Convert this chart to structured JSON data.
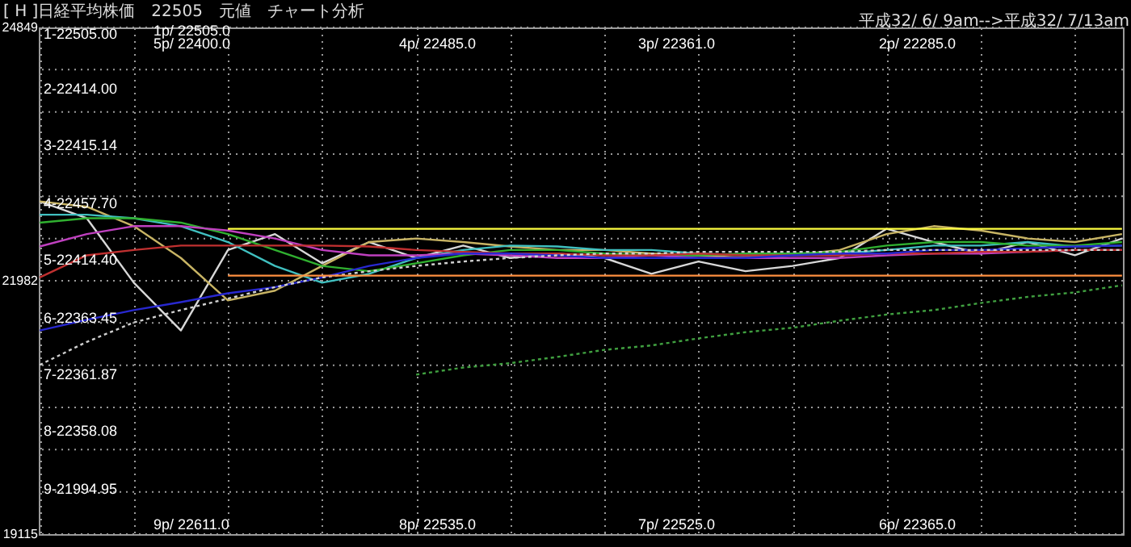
{
  "chart_data": {
    "type": "line",
    "title": "[ H ]日経平均株価　22505　元値　チャート分析",
    "subtitle": "平成32/ 6/ 9am-->平成32/ 7/13am",
    "annotations": [
      "1-22505.00",
      "2-22414.00",
      "3-22415.14",
      "4-22457.70",
      "5-22414.40",
      "6-22363.45",
      "7-22361.87",
      "8-22358.08",
      "9-21994.95",
      "1p/ 22505.0",
      "5p/ 22400.0",
      "4p/ 22485.0",
      "3p/ 22361.0",
      "2p/ 22285.0",
      "9p/ 22611.0",
      "8p/ 22535.0",
      "7p/ 22525.0",
      "6p/ 22365.0"
    ],
    "categories": [
      null,
      null,
      null,
      null,
      null,
      null,
      null,
      null,
      null,
      null,
      null,
      null,
      null,
      null,
      null,
      null,
      null,
      null,
      null,
      null,
      null,
      null,
      null,
      null
    ],
    "ylim": [
      19115,
      24849
    ],
    "yticks": [
      24849,
      {
        "value": 24371,
        "label": null
      },
      {
        "value": 23893,
        "label": null
      },
      {
        "value": 23416,
        "label": null
      },
      {
        "value": 22938,
        "label": null
      },
      {
        "value": 22460,
        "label": null
      },
      21982,
      {
        "value": 21504,
        "label": null
      },
      {
        "value": 21026,
        "label": null
      },
      {
        "value": 20549,
        "label": null
      },
      {
        "value": 20071,
        "label": null
      },
      {
        "value": 19593,
        "label": null
      },
      19115
    ],
    "grid": true,
    "tick_labels": "y",
    "series": [
      {
        "color": "#d8d8d8",
        "values": [
          22880,
          22690,
          21960,
          21420,
          22330,
          22510,
          22180,
          22420,
          22240,
          22380,
          22240,
          22290,
          22240,
          22060,
          22200,
          22090,
          22150,
          22240,
          22570,
          22420,
          22290,
          22420,
          22270,
          22460
        ]
      },
      {
        "color": "#c8b464",
        "values": [
          22880,
          22820,
          22600,
          22240,
          21760,
          21870,
          22150,
          22420,
          22460,
          22420,
          22370,
          22330,
          22330,
          22290,
          22270,
          22240,
          22270,
          22330,
          22510,
          22600,
          22550,
          22460,
          22420,
          22510
        ]
      },
      {
        "color": "#40c0c0",
        "values": [
          22730,
          22730,
          22690,
          22600,
          22420,
          22150,
          21960,
          22060,
          22240,
          22330,
          22380,
          22370,
          22330,
          22330,
          22290,
          22270,
          22270,
          22290,
          22330,
          22380,
          22380,
          22420,
          22370,
          22380
        ]
      },
      {
        "color": "#30b030",
        "values": [
          22640,
          22690,
          22690,
          22640,
          22510,
          22330,
          22150,
          22090,
          22180,
          22270,
          22330,
          22330,
          22290,
          22270,
          22270,
          22290,
          22290,
          22310,
          22380,
          22420,
          22420,
          22380,
          22380,
          22420
        ]
      },
      {
        "color": "#c040c0",
        "values": [
          22370,
          22510,
          22600,
          22600,
          22550,
          22460,
          22330,
          22270,
          22270,
          22290,
          22270,
          22240,
          22240,
          22270,
          22240,
          22240,
          22240,
          22240,
          22270,
          22290,
          22290,
          22310,
          22330,
          22330
        ]
      },
      {
        "color": "#c03030",
        "values": [
          22020,
          22270,
          22330,
          22380,
          22380,
          22380,
          22380,
          22370,
          22330,
          22310,
          22290,
          22290,
          22270,
          22270,
          22290,
          22270,
          22270,
          22270,
          22290,
          22290,
          22310,
          22310,
          22330,
          22330
        ]
      },
      {
        "color": "#2828d0",
        "values": [
          21420,
          21540,
          21650,
          21740,
          21840,
          21910,
          22020,
          22150,
          22240,
          22290,
          22290,
          22270,
          22240,
          22240,
          22240,
          22240,
          22270,
          22290,
          22290,
          22330,
          22330,
          22350,
          22370,
          22380
        ]
      },
      {
        "color": "#d0d0d0",
        "line_style": "dotted",
        "values": [
          21030,
          21290,
          21510,
          21650,
          21780,
          21910,
          22020,
          22090,
          22150,
          22200,
          22240,
          22270,
          22290,
          22290,
          22310,
          22310,
          22310,
          22310,
          22330,
          22330,
          22330,
          22330,
          22330,
          22330
        ]
      },
      {
        "color": "#40a040",
        "line_style": "dotted",
        "values": [
          null,
          null,
          null,
          null,
          null,
          null,
          null,
          null,
          20920,
          21000,
          21050,
          21120,
          21200,
          21250,
          21330,
          21400,
          21450,
          21530,
          21600,
          21650,
          21730,
          21800,
          21850,
          21930
        ]
      },
      {
        "color": "#ffff40",
        "values": [
          null,
          null,
          null,
          null,
          22570,
          22570,
          22570,
          22570,
          22570,
          22570,
          22570,
          22570,
          22570,
          22570,
          22570,
          22570,
          22570,
          22570,
          22570,
          22570,
          22570,
          22570,
          22570,
          22570
        ]
      },
      {
        "color": "#ff9040",
        "values": [
          null,
          null,
          null,
          null,
          22040,
          22040,
          22040,
          22040,
          22040,
          22040,
          22040,
          22040,
          22040,
          22040,
          22040,
          22040,
          22040,
          22040,
          22040,
          22040,
          22040,
          22040,
          22040,
          22040
        ]
      }
    ]
  }
}
